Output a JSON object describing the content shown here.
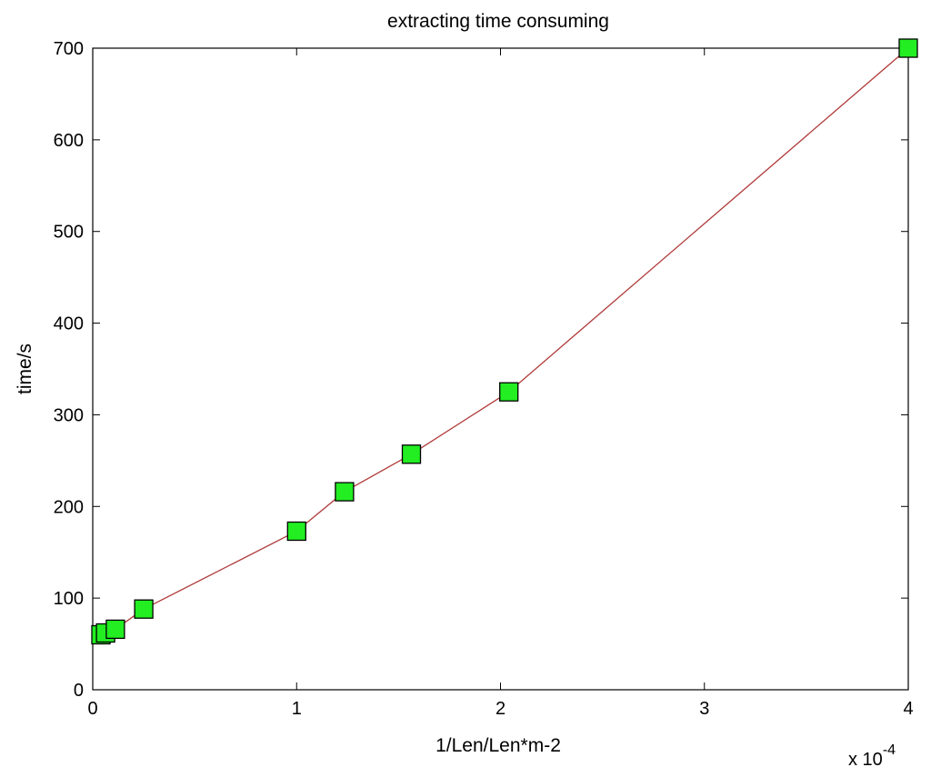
{
  "chart_data": {
    "type": "line",
    "title": "extracting time consuming",
    "xlabel": "1/Len/Len*m-2",
    "ylabel": "time/s",
    "x_multiplier": {
      "base": "x 10",
      "exponent": "-4"
    },
    "xlim": [
      0,
      0.0004
    ],
    "ylim": [
      0,
      700
    ],
    "x_ticks": [
      {
        "value": 0,
        "label": "0"
      },
      {
        "value": 0.0001,
        "label": "1"
      },
      {
        "value": 0.0002,
        "label": "2"
      },
      {
        "value": 0.0003,
        "label": "3"
      },
      {
        "value": 0.0004,
        "label": "4"
      }
    ],
    "y_ticks": [
      {
        "value": 0,
        "label": "0"
      },
      {
        "value": 100,
        "label": "100"
      },
      {
        "value": 200,
        "label": "200"
      },
      {
        "value": 300,
        "label": "300"
      },
      {
        "value": 400,
        "label": "400"
      },
      {
        "value": 500,
        "label": "500"
      },
      {
        "value": 600,
        "label": "600"
      },
      {
        "value": 700,
        "label": "700"
      }
    ],
    "grid": false,
    "series": [
      {
        "line_color": "#b03a3a",
        "marker": "square",
        "marker_fill": "#22ee22",
        "marker_edge": "#000000",
        "x": [
          4e-06,
          6.3e-06,
          1.11e-05,
          2.5e-05,
          0.0001,
          0.0001235,
          0.0001563,
          0.0002041,
          0.0004
        ],
        "y": [
          60,
          62,
          66,
          88,
          173,
          216,
          257,
          325,
          700
        ]
      }
    ]
  }
}
